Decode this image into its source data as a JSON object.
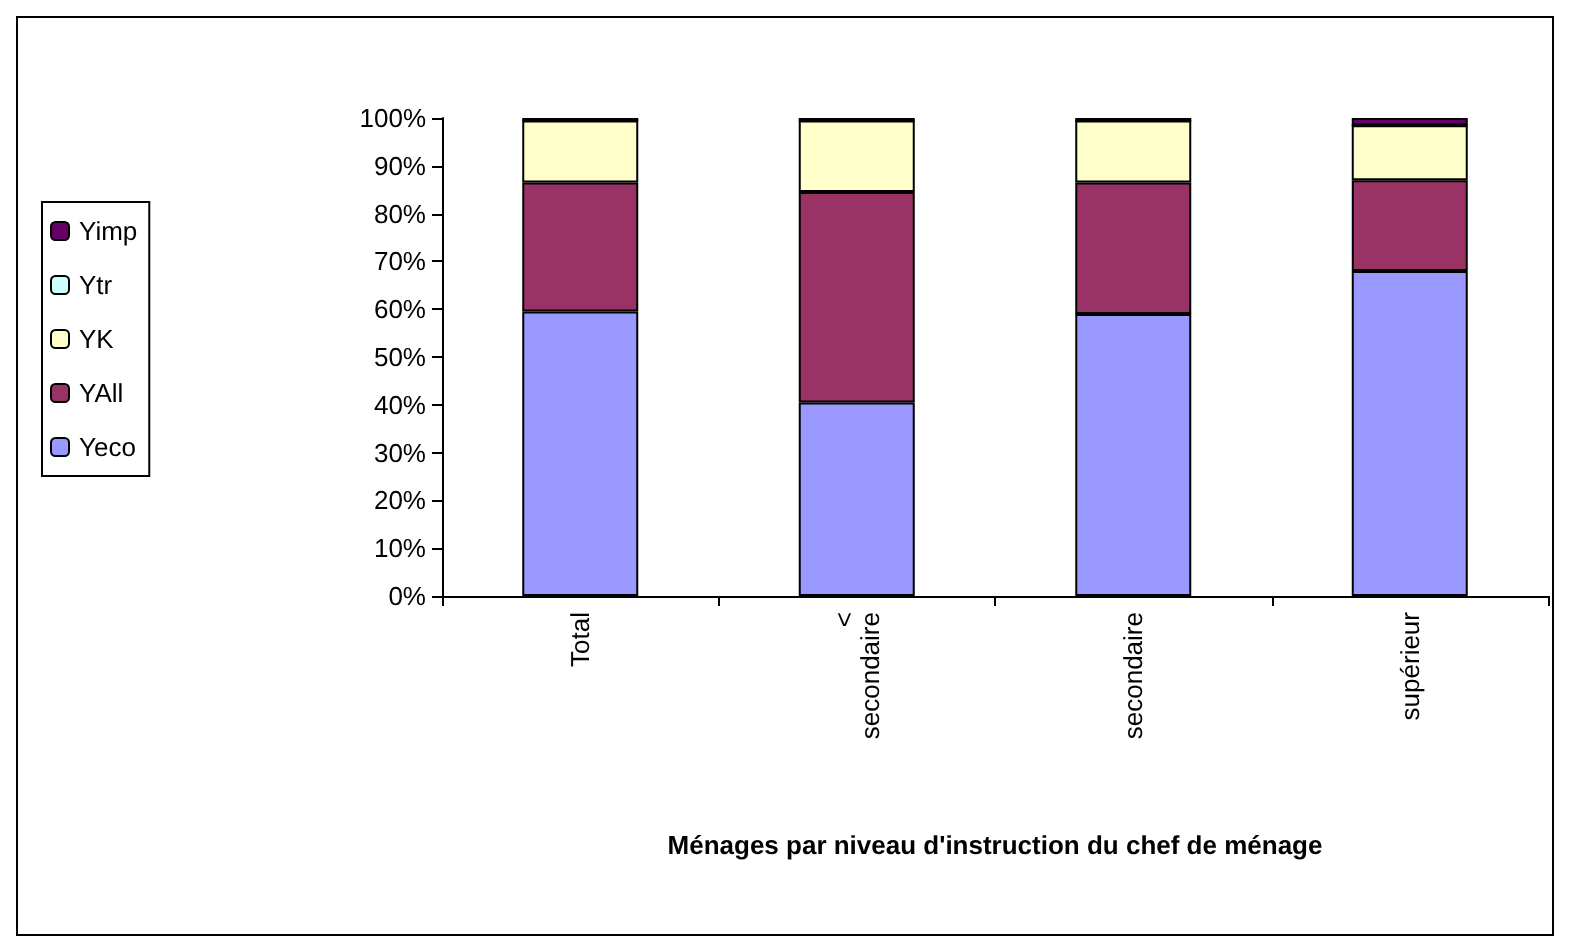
{
  "chart_data": {
    "type": "bar",
    "stacked": true,
    "xlabel": "Ménages par niveau d'instruction du chef de ménage",
    "categories": [
      "Total",
      "< secondaire",
      "secondaire",
      "supérieur"
    ],
    "series": [
      {
        "name": "Yeco",
        "color": "#9999ff",
        "values": [
          59.5,
          40.5,
          59,
          68
        ]
      },
      {
        "name": "YAll",
        "color": "#993366",
        "values": [
          27,
          44,
          27.5,
          19
        ]
      },
      {
        "name": "YK",
        "color": "#ffffcc",
        "values": [
          13,
          15,
          13,
          11.5
        ]
      },
      {
        "name": "Ytr",
        "color": "#ccffff",
        "values": [
          0,
          0,
          0,
          0
        ]
      },
      {
        "name": "Yimp",
        "color": "#660066",
        "values": [
          0.5,
          0.5,
          0.5,
          1.5
        ]
      }
    ],
    "ylim": [
      0,
      100
    ],
    "yticks": [
      {
        "value": 0,
        "label": "0%"
      },
      {
        "value": 10,
        "label": "10%"
      },
      {
        "value": 20,
        "label": "20%"
      },
      {
        "value": 30,
        "label": "30%"
      },
      {
        "value": 40,
        "label": "40%"
      },
      {
        "value": 50,
        "label": "50%"
      },
      {
        "value": 60,
        "label": "60%"
      },
      {
        "value": 70,
        "label": "70%"
      },
      {
        "value": 80,
        "label": "80%"
      },
      {
        "value": 90,
        "label": "90%"
      },
      {
        "value": 100,
        "label": "100%"
      }
    ],
    "grid": false,
    "legend": "left"
  }
}
